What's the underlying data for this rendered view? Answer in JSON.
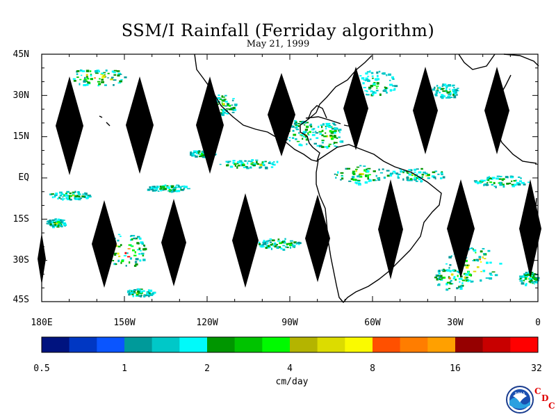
{
  "title": "SSM/I Rainfall (Ferriday algorithm)",
  "subtitle": "May 21, 1999",
  "map": {
    "lat_labels": [
      "45N",
      "30N",
      "15N",
      "EQ",
      "15S",
      "30S",
      "45S"
    ],
    "lon_labels": [
      "180E",
      "150W",
      "120W",
      "90W",
      "60W",
      "30W",
      "0"
    ],
    "lon_range": [
      -180,
      0
    ],
    "lat_range": [
      -45,
      45
    ]
  },
  "colorbar": {
    "unit": "cm/day",
    "tick_labels": [
      "0.5",
      "1",
      "2",
      "4",
      "8",
      "16",
      "32"
    ],
    "colors": [
      "#00137f",
      "#0037c3",
      "#0a55ff",
      "#009a9a",
      "#00c8c8",
      "#00fafa",
      "#009600",
      "#00c300",
      "#00fa00",
      "#b4b400",
      "#dcdc00",
      "#fafa00",
      "#ff5000",
      "#ff7d00",
      "#ffa000",
      "#960000",
      "#c80000",
      "#ff0000"
    ]
  },
  "logo": {
    "emblem_text": "NOAA",
    "letters": [
      "C",
      "D",
      "C"
    ]
  }
}
